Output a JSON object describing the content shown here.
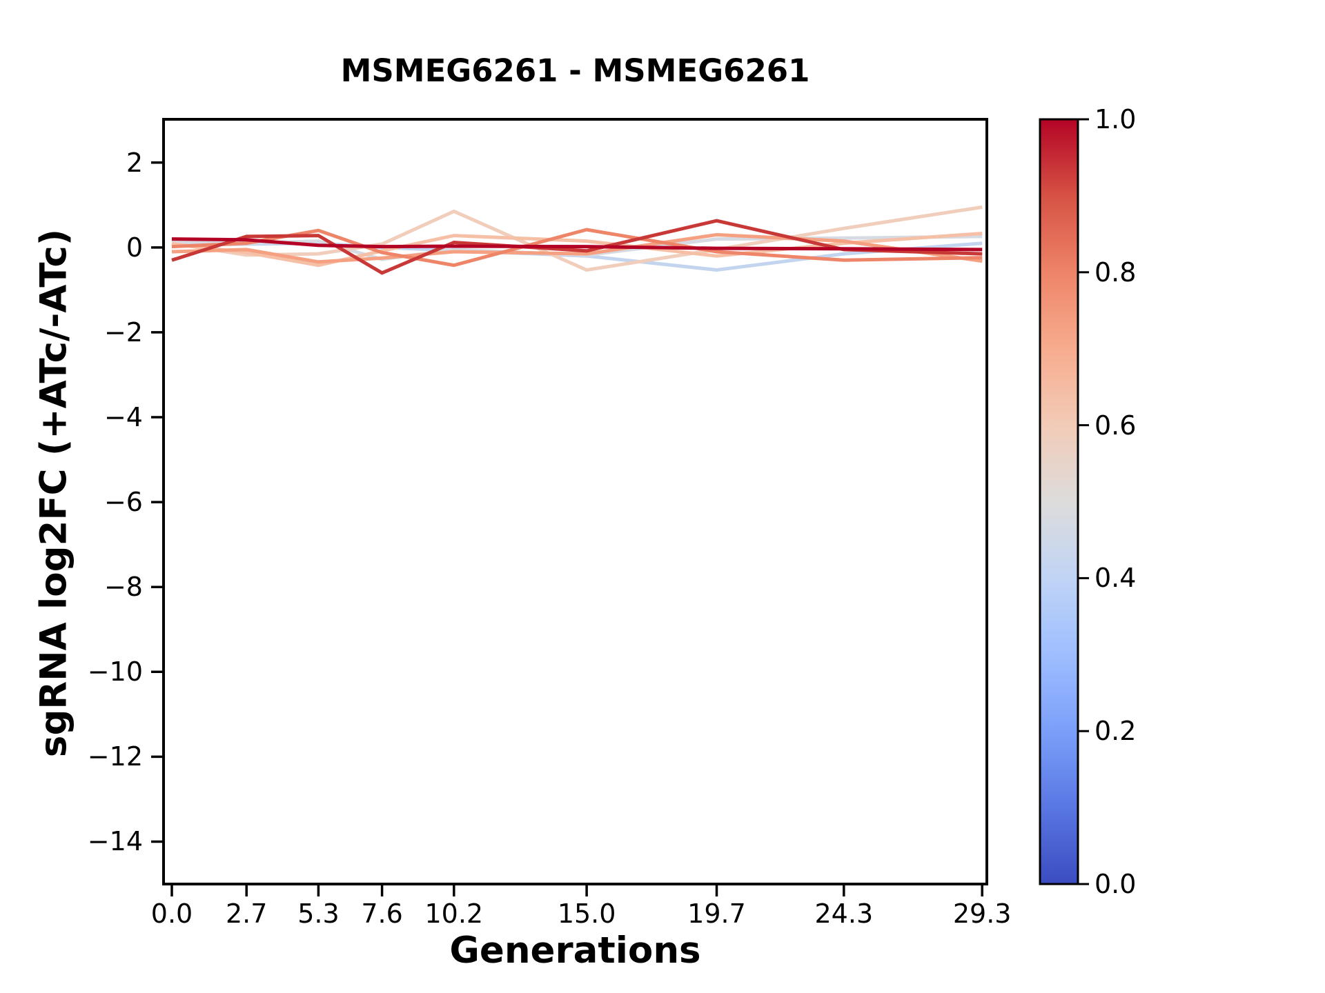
{
  "figure": {
    "title": "MSMEG6261 - MSMEG6261",
    "xlabel": "Generations",
    "ylabel": "sgRNA log2FC (+ATc/-ATc)"
  },
  "chart_data": {
    "type": "line",
    "title": "MSMEG6261 - MSMEG6261",
    "xlabel": "Generations",
    "ylabel": "sgRNA log2FC (+ATc/-ATc)",
    "grid": false,
    "legend": "none (colorbar encodes line value 0.0-1.0, coolwarm colormap)",
    "x": [
      0.0,
      2.7,
      5.3,
      7.6,
      10.2,
      15.0,
      19.7,
      24.3,
      29.3
    ],
    "x_tick_labels": [
      "0.0",
      "2.7",
      "5.3",
      "7.6",
      "10.2",
      "15.0",
      "19.7",
      "24.3",
      "29.3"
    ],
    "y_tick_values": [
      2,
      0,
      -2,
      -4,
      -6,
      -8,
      -10,
      -12,
      -14
    ],
    "y_tick_labels": [
      "2",
      "0",
      "−2",
      "−4",
      "−6",
      "−8",
      "−10",
      "−12",
      "−14"
    ],
    "xlim": [
      -0.3,
      29.47
    ],
    "ylim": [
      -15.0,
      3.02
    ],
    "series": [
      {
        "efficacy": 0.4,
        "color": "#c3d4ee",
        "values": [
          0.05,
          0.08,
          0.1,
          0.0,
          -0.07,
          -0.2,
          -0.53,
          -0.15,
          0.1
        ]
      },
      {
        "efficacy": 0.47,
        "color": "#d6dae3",
        "values": [
          0.12,
          0.1,
          0.15,
          -0.28,
          -0.05,
          -0.18,
          0.2,
          0.22,
          0.26
        ]
      },
      {
        "efficacy": 0.57,
        "color": "#f1cdbb",
        "values": [
          0.1,
          -0.18,
          -0.15,
          0.08,
          0.85,
          -0.53,
          -0.05,
          0.45,
          0.95
        ]
      },
      {
        "efficacy": 0.63,
        "color": "#f5c0a5",
        "values": [
          0.08,
          -0.12,
          -0.42,
          -0.08,
          0.28,
          0.15,
          -0.2,
          0.1,
          0.33
        ]
      },
      {
        "efficacy": 0.72,
        "color": "#f5a081",
        "values": [
          -0.1,
          -0.05,
          -0.34,
          -0.25,
          -0.1,
          -0.15,
          0.3,
          0.15,
          -0.32
        ]
      },
      {
        "efficacy": 0.8,
        "color": "#ee8468",
        "values": [
          0.02,
          0.1,
          0.4,
          -0.12,
          -0.42,
          0.42,
          -0.1,
          -0.3,
          -0.24
        ]
      },
      {
        "efficacy": 0.93,
        "color": "#c83836",
        "values": [
          -0.3,
          0.26,
          0.28,
          -0.6,
          0.12,
          -0.08,
          0.63,
          -0.05,
          -0.15
        ]
      },
      {
        "efficacy": 1.0,
        "color": "#b40426",
        "values": [
          0.2,
          0.18,
          0.05,
          0.02,
          0.03,
          0.02,
          -0.02,
          -0.03,
          -0.05
        ]
      }
    ],
    "colorbar": {
      "cmap": "coolwarm",
      "vmin": 0.0,
      "vmax": 1.0,
      "tick_labels": [
        "1.0",
        "0.8",
        "0.6",
        "0.4",
        "0.2",
        "0.0"
      ],
      "tick_values": [
        1.0,
        0.8,
        0.6,
        0.4,
        0.2,
        0.0
      ],
      "gradient_top_to_bottom": [
        "#b40426",
        "#d65244",
        "#ee8468",
        "#f7ac8e",
        "#f2cbb7",
        "#dddcdb",
        "#c0d4f5",
        "#9ebeff",
        "#7b9ff9",
        "#5977e3",
        "#3b4cc0"
      ]
    }
  }
}
